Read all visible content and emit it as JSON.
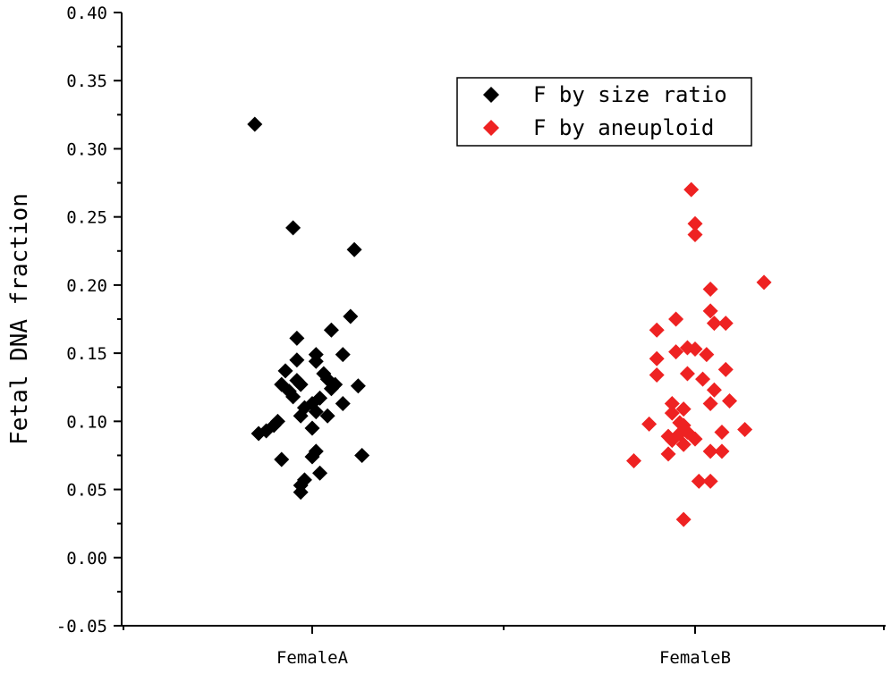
{
  "chart_data": {
    "type": "scatter",
    "title": "",
    "xlabel": "",
    "ylabel": "Fetal DNA fraction",
    "ylim": [
      -0.05,
      0.4
    ],
    "yticks": [
      "-0.05",
      "0.00",
      "0.05",
      "0.10",
      "0.15",
      "0.20",
      "0.25",
      "0.30",
      "0.35",
      "0.40"
    ],
    "categories": [
      "FemaleA",
      "FemaleB"
    ],
    "legend_position": "top-right",
    "series": [
      {
        "name": "F by size ratio",
        "color": "#000000",
        "points": [
          {
            "x": -0.15,
            "y": 0.318
          },
          {
            "x": -0.05,
            "y": 0.242
          },
          {
            "x": 0.11,
            "y": 0.226
          },
          {
            "x": 0.1,
            "y": 0.177
          },
          {
            "x": -0.04,
            "y": 0.161
          },
          {
            "x": 0.05,
            "y": 0.167
          },
          {
            "x": 0.08,
            "y": 0.149
          },
          {
            "x": -0.04,
            "y": 0.145
          },
          {
            "x": 0.01,
            "y": 0.149
          },
          {
            "x": 0.01,
            "y": 0.144
          },
          {
            "x": -0.07,
            "y": 0.137
          },
          {
            "x": 0.03,
            "y": 0.135
          },
          {
            "x": -0.04,
            "y": 0.13
          },
          {
            "x": -0.03,
            "y": 0.127
          },
          {
            "x": 0.04,
            "y": 0.131
          },
          {
            "x": 0.06,
            "y": 0.127
          },
          {
            "x": 0.12,
            "y": 0.126
          },
          {
            "x": 0.05,
            "y": 0.124
          },
          {
            "x": -0.08,
            "y": 0.127
          },
          {
            "x": -0.06,
            "y": 0.122
          },
          {
            "x": -0.05,
            "y": 0.118
          },
          {
            "x": 0.02,
            "y": 0.117
          },
          {
            "x": 0.0,
            "y": 0.113
          },
          {
            "x": 0.08,
            "y": 0.113
          },
          {
            "x": -0.02,
            "y": 0.11
          },
          {
            "x": -0.03,
            "y": 0.104
          },
          {
            "x": 0.01,
            "y": 0.107
          },
          {
            "x": 0.04,
            "y": 0.104
          },
          {
            "x": -0.09,
            "y": 0.1
          },
          {
            "x": -0.1,
            "y": 0.097
          },
          {
            "x": -0.12,
            "y": 0.093
          },
          {
            "x": -0.14,
            "y": 0.091
          },
          {
            "x": 0.0,
            "y": 0.095
          },
          {
            "x": 0.01,
            "y": 0.078
          },
          {
            "x": 0.0,
            "y": 0.074
          },
          {
            "x": 0.13,
            "y": 0.075
          },
          {
            "x": -0.08,
            "y": 0.072
          },
          {
            "x": 0.02,
            "y": 0.062
          },
          {
            "x": -0.02,
            "y": 0.057
          },
          {
            "x": -0.03,
            "y": 0.053
          },
          {
            "x": -0.03,
            "y": 0.048
          }
        ]
      },
      {
        "name": "F by aneuploid",
        "color": "#ee2222",
        "points": [
          {
            "x": -0.01,
            "y": 0.27
          },
          {
            "x": 0.0,
            "y": 0.245
          },
          {
            "x": 0.0,
            "y": 0.237
          },
          {
            "x": 0.18,
            "y": 0.202
          },
          {
            "x": 0.04,
            "y": 0.197
          },
          {
            "x": 0.04,
            "y": 0.181
          },
          {
            "x": -0.05,
            "y": 0.175
          },
          {
            "x": 0.05,
            "y": 0.172
          },
          {
            "x": 0.08,
            "y": 0.172
          },
          {
            "x": -0.1,
            "y": 0.167
          },
          {
            "x": -0.02,
            "y": 0.154
          },
          {
            "x": 0.0,
            "y": 0.153
          },
          {
            "x": -0.05,
            "y": 0.151
          },
          {
            "x": 0.03,
            "y": 0.149
          },
          {
            "x": -0.1,
            "y": 0.146
          },
          {
            "x": 0.08,
            "y": 0.138
          },
          {
            "x": -0.02,
            "y": 0.135
          },
          {
            "x": -0.1,
            "y": 0.134
          },
          {
            "x": 0.02,
            "y": 0.131
          },
          {
            "x": 0.05,
            "y": 0.123
          },
          {
            "x": 0.09,
            "y": 0.115
          },
          {
            "x": 0.04,
            "y": 0.113
          },
          {
            "x": -0.06,
            "y": 0.113
          },
          {
            "x": -0.03,
            "y": 0.109
          },
          {
            "x": -0.06,
            "y": 0.106
          },
          {
            "x": -0.12,
            "y": 0.098
          },
          {
            "x": -0.04,
            "y": 0.099
          },
          {
            "x": -0.03,
            "y": 0.097
          },
          {
            "x": 0.13,
            "y": 0.094
          },
          {
            "x": 0.07,
            "y": 0.092
          },
          {
            "x": -0.02,
            "y": 0.092
          },
          {
            "x": -0.04,
            "y": 0.091
          },
          {
            "x": -0.07,
            "y": 0.089
          },
          {
            "x": -0.06,
            "y": 0.086
          },
          {
            "x": 0.0,
            "y": 0.087
          },
          {
            "x": -0.03,
            "y": 0.083
          },
          {
            "x": 0.04,
            "y": 0.078
          },
          {
            "x": 0.07,
            "y": 0.078
          },
          {
            "x": -0.07,
            "y": 0.076
          },
          {
            "x": -0.16,
            "y": 0.071
          },
          {
            "x": 0.01,
            "y": 0.056
          },
          {
            "x": 0.04,
            "y": 0.056
          },
          {
            "x": -0.03,
            "y": 0.028
          }
        ]
      }
    ]
  }
}
